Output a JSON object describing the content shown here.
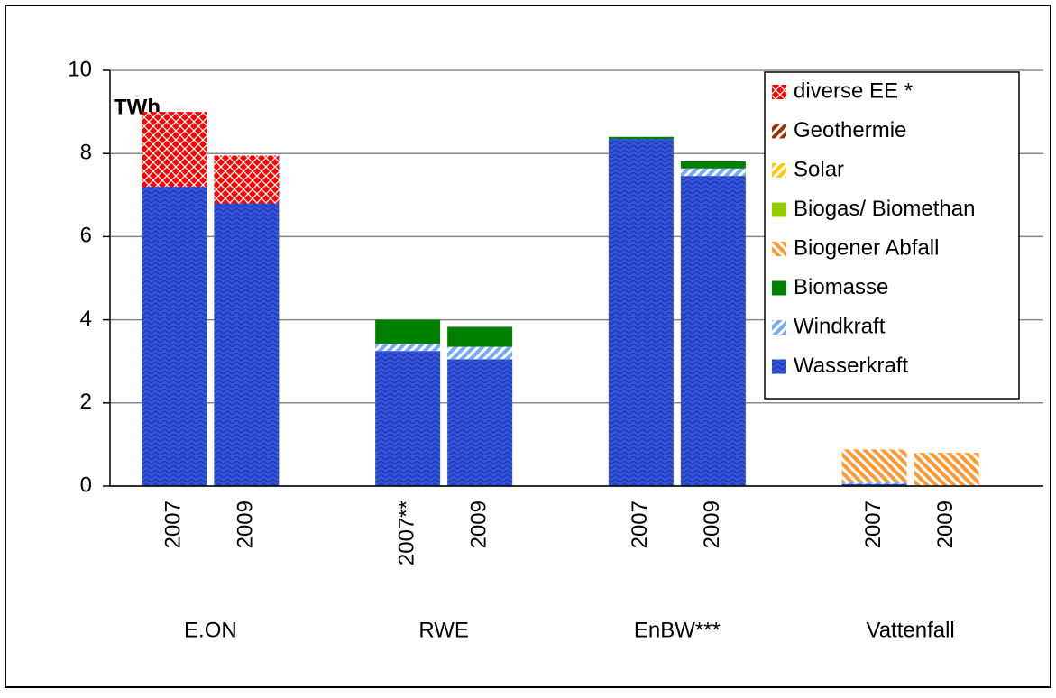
{
  "chart_data": {
    "type": "stacked_bar",
    "y_unit_label": "TWh",
    "groups": [
      "E.ON",
      "RWE",
      "EnBW***",
      "Vattenfall"
    ],
    "categories": [
      "2007",
      "2009",
      "2007**",
      "2009",
      "2007",
      "2009",
      "2007",
      "2009"
    ],
    "series": [
      {
        "name": "Wasserkraft",
        "color": "#3355dd",
        "pattern": "wave",
        "values": [
          7.2,
          6.8,
          3.25,
          3.05,
          8.35,
          7.46,
          0.05,
          0
        ]
      },
      {
        "name": "Windkraft",
        "color": "#77aaff",
        "pattern": "stripe",
        "values": [
          0,
          0,
          0.17,
          0.3,
          0,
          0.18,
          0.05,
          0
        ]
      },
      {
        "name": "Biomasse",
        "color": "#008000",
        "pattern": "solid",
        "values": [
          0,
          0,
          0.58,
          0.48,
          0.05,
          0.17,
          0,
          0
        ]
      },
      {
        "name": "Biogener Abfall",
        "color": "#ff9933",
        "pattern": "stripe-back",
        "values": [
          0,
          0,
          0,
          0,
          0,
          0,
          0.78,
          0.8
        ]
      },
      {
        "name": "Biogas/ Biomethan",
        "color": "#99cc00",
        "pattern": "solid",
        "values": [
          0,
          0,
          0,
          0,
          0,
          0,
          0,
          0
        ]
      },
      {
        "name": "Solar",
        "color": "#ffcc00",
        "pattern": "stripe",
        "values": [
          0,
          0,
          0,
          0,
          0,
          0,
          0,
          0
        ]
      },
      {
        "name": "Geothermie",
        "color": "#993300",
        "pattern": "stripe",
        "values": [
          0,
          0,
          0,
          0,
          0,
          0,
          0,
          0
        ]
      },
      {
        "name": "diverse EE *",
        "color": "#ff0000",
        "pattern": "cross",
        "values": [
          1.8,
          1.15,
          0,
          0,
          0,
          0,
          0,
          0
        ]
      }
    ],
    "ylim": [
      0,
      10
    ],
    "yticks": [
      0,
      2,
      4,
      6,
      8,
      10
    ],
    "grid": true,
    "legend": "upper right"
  }
}
